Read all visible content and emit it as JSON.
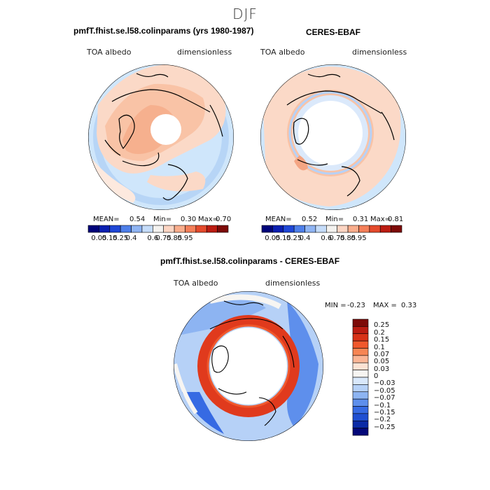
{
  "title": "DJF",
  "colors": {
    "hbar": [
      "#00037a",
      "#0a1fb0",
      "#1f47d6",
      "#4e7fe9",
      "#8fb4f3",
      "#c5dcf9",
      "#f4f2ef",
      "#fcd5c3",
      "#f9ad8c",
      "#f47f59",
      "#e44a2c",
      "#bb1c12",
      "#7d0a08"
    ],
    "vbar": [
      "#7d0a08",
      "#bb1c12",
      "#d83218",
      "#f0582c",
      "#f78553",
      "#fbb595",
      "#fde2d3",
      "#f7f5f2",
      "#d9e8fb",
      "#b6d1f7",
      "#8db4f2",
      "#5e8fec",
      "#366ae3",
      "#1f4fd2",
      "#0a2aa6",
      "#03087a"
    ],
    "ocean": "#cfe6fb",
    "land_pos": "#fbd9c7",
    "ring": "#e03a1d"
  },
  "panels": [
    {
      "id": "model",
      "title": "pmfT.fhist.se.l58.colinparams (yrs 1980-1987)",
      "variable": "TOA albedo",
      "units": "dimensionless",
      "mean_label": "MEAN=",
      "mean": "0.54",
      "min_label": "Min=",
      "min": "0.30",
      "max_label": "Max=",
      "max": "0.70",
      "tick_labels": [
        "0.05",
        "0.15",
        "0.25",
        "0.4",
        "0.6",
        "0.75",
        "0.85",
        "0.95"
      ]
    },
    {
      "id": "obs",
      "title": "CERES-EBAF",
      "variable": "TOA albedo",
      "units": "dimensionless",
      "mean_label": "MEAN=",
      "mean": "0.52",
      "min_label": "Min=",
      "min": "0.31",
      "max_label": "Max=",
      "max": "0.81",
      "tick_labels": [
        "0.05",
        "0.15",
        "0.25",
        "0.4",
        "0.6",
        "0.75",
        "0.85",
        "0.95"
      ]
    }
  ],
  "diff": {
    "title": "pmfT.fhist.se.l58.colinparams - CERES-EBAF",
    "variable": "TOA albedo",
    "units": "dimensionless",
    "min_label": "MIN =",
    "min": "-0.23",
    "max_label": "MAX =",
    "max": "0.33",
    "tick_labels": [
      "0.25",
      "0.2",
      "0.15",
      "0.1",
      "0.07",
      "0.05",
      "0.03",
      "0",
      "−0.03",
      "−0.05",
      "−0.07",
      "−0.1",
      "−0.15",
      "−0.2",
      "−0.25"
    ]
  }
}
